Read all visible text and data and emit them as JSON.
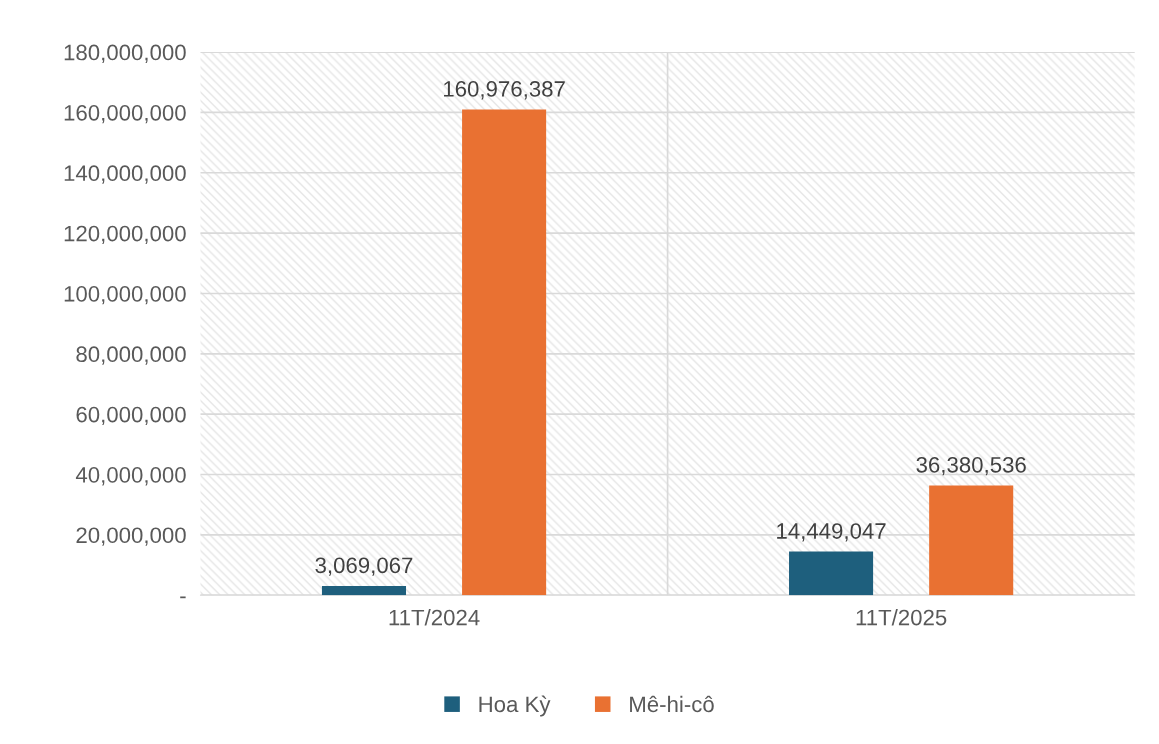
{
  "chart_data": {
    "type": "bar",
    "categories": [
      "11T/2024",
      "11T/2025"
    ],
    "series": [
      {
        "name": "Hoa Kỳ",
        "color": "#1e5f7d",
        "values": [
          3069067,
          14449047
        ],
        "value_labels": [
          "3,069,067",
          "14,449,047"
        ]
      },
      {
        "name": "Mê-hi-cô",
        "color": "#e97132",
        "values": [
          160976387,
          36380536
        ],
        "value_labels": [
          "160,976,387",
          "36,380,536"
        ]
      }
    ],
    "ylim": [
      0,
      180000000
    ],
    "yticks": [
      {
        "value": 0,
        "label": "-"
      },
      {
        "value": 20000000,
        "label": "20,000,000"
      },
      {
        "value": 40000000,
        "label": "40,000,000"
      },
      {
        "value": 60000000,
        "label": "60,000,000"
      },
      {
        "value": 80000000,
        "label": "80,000,000"
      },
      {
        "value": 100000000,
        "label": "100,000,000"
      },
      {
        "value": 120000000,
        "label": "120,000,000"
      },
      {
        "value": 140000000,
        "label": "140,000,000"
      },
      {
        "value": 160000000,
        "label": "160,000,000"
      },
      {
        "value": 180000000,
        "label": "180,000,000"
      }
    ],
    "grid": true,
    "legend": "bottom"
  }
}
